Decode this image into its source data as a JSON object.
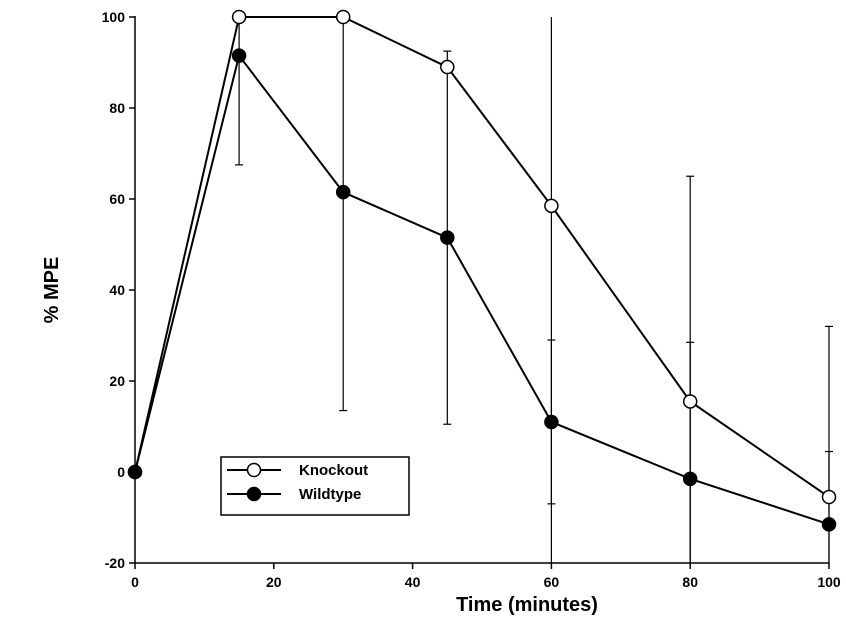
{
  "chart_data": {
    "type": "line",
    "title": "",
    "xlabel": "Time (minutes)",
    "ylabel": "% MPE",
    "xlim": [
      0,
      100
    ],
    "ylim": [
      -20,
      100
    ],
    "xticks": [
      0,
      20,
      40,
      60,
      80,
      100
    ],
    "yticks": [
      -20,
      0,
      20,
      40,
      60,
      80,
      100
    ],
    "grid": false,
    "legend_position": "bottom-left",
    "series": [
      {
        "name": "Knockout",
        "marker": "open-circle",
        "color": "#000000",
        "x": [
          0,
          15,
          30,
          45,
          60,
          80,
          100
        ],
        "y": [
          0,
          100,
          100,
          89,
          58.5,
          15.5,
          -5.5
        ],
        "error": [
          0,
          0,
          0,
          0,
          100,
          49.5,
          37.5
        ]
      },
      {
        "name": "Wildtype",
        "marker": "filled-circle",
        "color": "#000000",
        "x": [
          0,
          15,
          30,
          45,
          60,
          80,
          100
        ],
        "y": [
          0,
          91.5,
          61.5,
          51.5,
          11,
          -1.5,
          -11.5
        ],
        "error": [
          0,
          24,
          48,
          41,
          18,
          30,
          16
        ]
      }
    ]
  }
}
